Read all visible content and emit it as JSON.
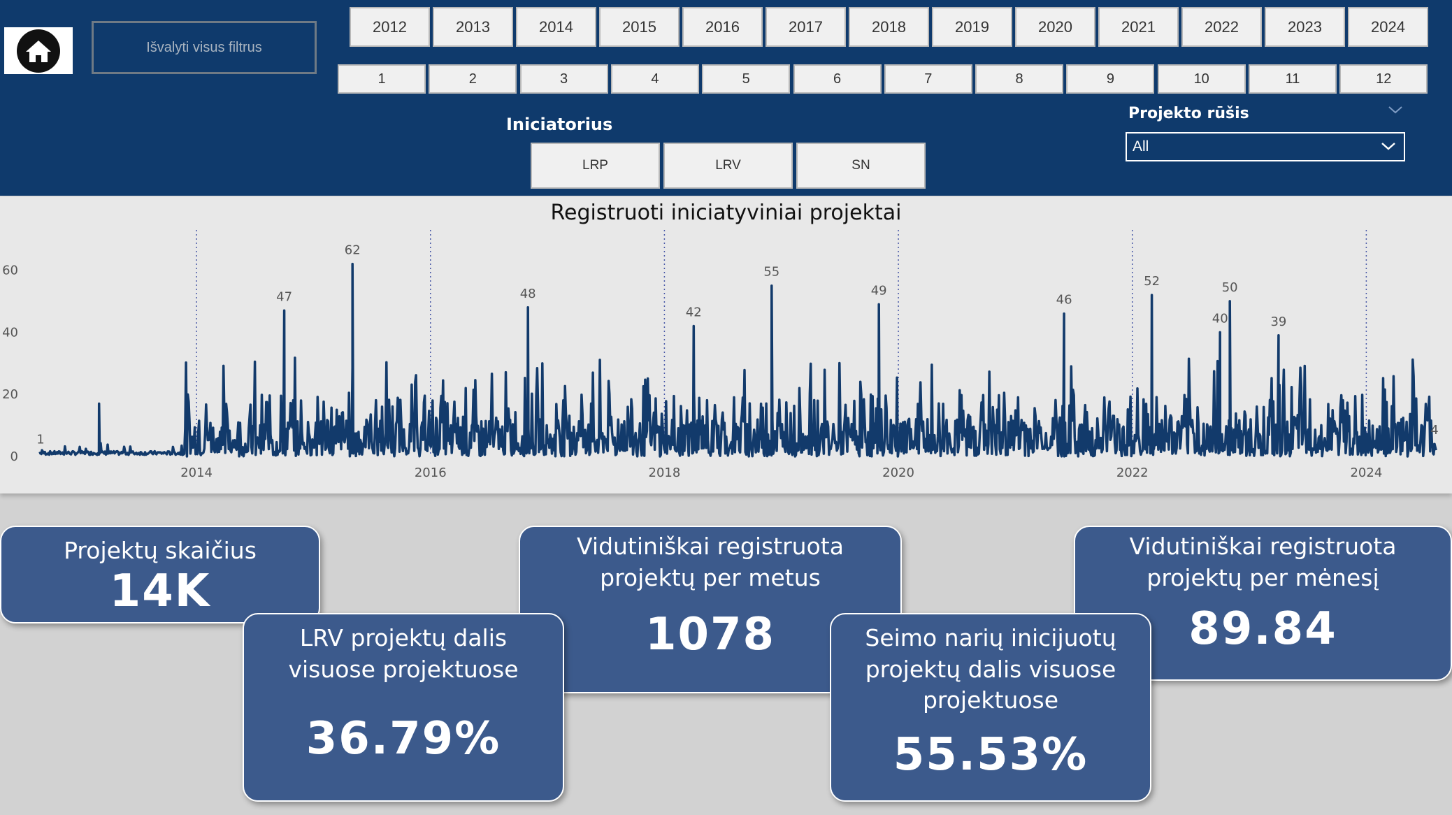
{
  "header": {
    "clear_filters_label": "Išvalyti visus filtrus",
    "years": [
      "2012",
      "2013",
      "2014",
      "2015",
      "2016",
      "2017",
      "2018",
      "2019",
      "2020",
      "2021",
      "2022",
      "2023",
      "2024"
    ],
    "months": [
      "1",
      "2",
      "3",
      "4",
      "5",
      "6",
      "7",
      "8",
      "9",
      "10",
      "11",
      "12"
    ],
    "initiator_label": "Iniciatorius",
    "initiators": [
      "LRP",
      "LRV",
      "SN"
    ],
    "project_type_label": "Projekto rūšis",
    "project_type_value": "All"
  },
  "chart_data": {
    "type": "line",
    "title": "Registruoti iniciatyviniai projektai",
    "xlabel": "",
    "ylabel": "",
    "x_ticks": [
      "2014",
      "2016",
      "2018",
      "2020",
      "2022",
      "2024"
    ],
    "y_ticks": [
      0,
      20,
      40,
      60
    ],
    "ylim": [
      0,
      68
    ],
    "xlim": [
      "2012-09",
      "2024-08"
    ],
    "series_color": "#123a6b",
    "grid": "vertical dotted at year boundaries",
    "peaks": [
      {
        "x": "2012-09",
        "y": 1
      },
      {
        "x": "2013-03",
        "y": 17
      },
      {
        "x": "2014-10",
        "y": 47
      },
      {
        "x": "2015-05",
        "y": 62
      },
      {
        "x": "2016-11",
        "y": 48
      },
      {
        "x": "2018-04",
        "y": 42
      },
      {
        "x": "2018-12",
        "y": 55
      },
      {
        "x": "2019-11",
        "y": 49
      },
      {
        "x": "2021-06",
        "y": 46
      },
      {
        "x": "2022-03",
        "y": 52
      },
      {
        "x": "2022-10",
        "y": 40
      },
      {
        "x": "2022-11",
        "y": 50
      },
      {
        "x": "2023-04",
        "y": 39
      },
      {
        "x": "2024-08",
        "y": 4
      }
    ],
    "data_labels": [
      {
        "x": "2012-09",
        "y": 1,
        "text": "1"
      },
      {
        "x": "2014-10",
        "y": 47,
        "text": "47"
      },
      {
        "x": "2015-05",
        "y": 62,
        "text": "62"
      },
      {
        "x": "2016-11",
        "y": 48,
        "text": "48"
      },
      {
        "x": "2018-04",
        "y": 42,
        "text": "42"
      },
      {
        "x": "2018-12",
        "y": 55,
        "text": "55"
      },
      {
        "x": "2019-11",
        "y": 49,
        "text": "49"
      },
      {
        "x": "2021-06",
        "y": 46,
        "text": "46"
      },
      {
        "x": "2022-03",
        "y": 52,
        "text": "52"
      },
      {
        "x": "2022-10",
        "y": 40,
        "text": "40"
      },
      {
        "x": "2022-11",
        "y": 50,
        "text": "50"
      },
      {
        "x": "2023-04",
        "y": 39,
        "text": "39"
      },
      {
        "x": "2024-08",
        "y": 4,
        "text": "4"
      }
    ]
  },
  "cards": {
    "count_title": "Projektų skaičius",
    "count_value": "14K",
    "lrv_title": "LRV projektų dalis visuose projektuose",
    "lrv_value": "36.79%",
    "avg_year_title": "Vidutiniškai registruota projektų per metus",
    "avg_year_value": "1078",
    "sn_title": "Seimo narių inicijuotų projektų dalis visuose projektuose",
    "sn_value": "55.53%",
    "avg_month_title": "Vidutiniškai registruota projektų per mėnesį",
    "avg_month_value": "89.84"
  }
}
